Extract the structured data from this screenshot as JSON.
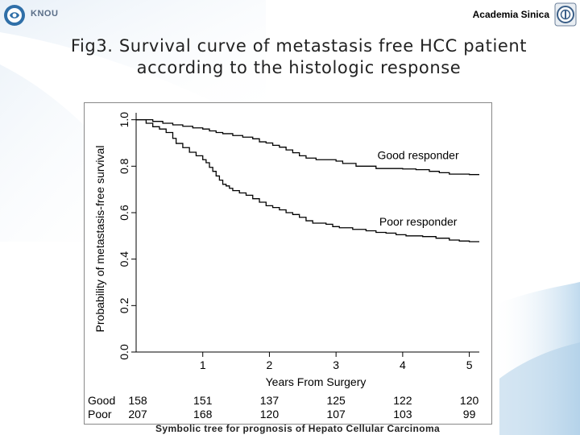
{
  "header": {
    "logo_text": "KNOU",
    "organization": "Academia Sinica",
    "left_logo_icon": "knou-emblem-icon",
    "right_logo_icon": "academia-sinica-emblem-icon"
  },
  "slide": {
    "title_line1": "Fig3. Survival curve of metastasis free HCC patient",
    "title_line2": "according to the histologic response",
    "caption": "Symbolic tree for prognosis of Hepato Cellular Carcinoma"
  },
  "colors": {
    "line": "#000000",
    "swoosh": "#c4dcef",
    "title_text": "#222222"
  },
  "chart_data": {
    "type": "line",
    "step": true,
    "xlabel": "Years From Surgery",
    "ylabel": "Probability of metastasis-free survival",
    "xlim": [
      0,
      5.15
    ],
    "ylim": [
      0,
      1.03
    ],
    "xticks": [
      "1",
      "2",
      "3",
      "4",
      "5"
    ],
    "yticks": [
      "0.0",
      "0.2",
      "0.4",
      "0.6",
      "0.8",
      "1.0"
    ],
    "grid": false,
    "series": [
      {
        "name": "Good responder",
        "points": [
          [
            0,
            1.0
          ],
          [
            0.25,
            0.993
          ],
          [
            0.4,
            0.985
          ],
          [
            0.55,
            0.978
          ],
          [
            0.7,
            0.972
          ],
          [
            0.85,
            0.965
          ],
          [
            1.0,
            0.96
          ],
          [
            1.1,
            0.952
          ],
          [
            1.2,
            0.945
          ],
          [
            1.3,
            0.94
          ],
          [
            1.45,
            0.932
          ],
          [
            1.6,
            0.925
          ],
          [
            1.75,
            0.918
          ],
          [
            1.85,
            0.905
          ],
          [
            1.95,
            0.9
          ],
          [
            2.05,
            0.89
          ],
          [
            2.15,
            0.882
          ],
          [
            2.25,
            0.87
          ],
          [
            2.35,
            0.858
          ],
          [
            2.45,
            0.845
          ],
          [
            2.55,
            0.835
          ],
          [
            2.7,
            0.828
          ],
          [
            3.0,
            0.822
          ],
          [
            3.1,
            0.812
          ],
          [
            3.3,
            0.8
          ],
          [
            3.6,
            0.79
          ],
          [
            4.0,
            0.788
          ],
          [
            4.2,
            0.785
          ],
          [
            4.4,
            0.778
          ],
          [
            4.55,
            0.772
          ],
          [
            4.7,
            0.766
          ],
          [
            5.0,
            0.764
          ],
          [
            5.15,
            0.764
          ]
        ]
      },
      {
        "name": "Poor responder",
        "points": [
          [
            0,
            1.0
          ],
          [
            0.15,
            0.985
          ],
          [
            0.25,
            0.97
          ],
          [
            0.35,
            0.96
          ],
          [
            0.45,
            0.945
          ],
          [
            0.55,
            0.92
          ],
          [
            0.6,
            0.898
          ],
          [
            0.7,
            0.88
          ],
          [
            0.8,
            0.86
          ],
          [
            0.9,
            0.845
          ],
          [
            1.0,
            0.828
          ],
          [
            1.05,
            0.815
          ],
          [
            1.1,
            0.795
          ],
          [
            1.15,
            0.778
          ],
          [
            1.2,
            0.758
          ],
          [
            1.25,
            0.74
          ],
          [
            1.3,
            0.722
          ],
          [
            1.35,
            0.715
          ],
          [
            1.4,
            0.705
          ],
          [
            1.45,
            0.695
          ],
          [
            1.55,
            0.685
          ],
          [
            1.65,
            0.675
          ],
          [
            1.75,
            0.66
          ],
          [
            1.85,
            0.645
          ],
          [
            1.95,
            0.63
          ],
          [
            2.05,
            0.622
          ],
          [
            2.15,
            0.612
          ],
          [
            2.25,
            0.6
          ],
          [
            2.35,
            0.592
          ],
          [
            2.45,
            0.58
          ],
          [
            2.55,
            0.565
          ],
          [
            2.65,
            0.555
          ],
          [
            2.85,
            0.55
          ],
          [
            2.95,
            0.54
          ],
          [
            3.05,
            0.535
          ],
          [
            3.25,
            0.528
          ],
          [
            3.45,
            0.522
          ],
          [
            3.6,
            0.515
          ],
          [
            3.75,
            0.512
          ],
          [
            3.9,
            0.505
          ],
          [
            4.05,
            0.5
          ],
          [
            4.3,
            0.497
          ],
          [
            4.5,
            0.49
          ],
          [
            4.7,
            0.482
          ],
          [
            4.85,
            0.478
          ],
          [
            5.0,
            0.475
          ],
          [
            5.15,
            0.475
          ]
        ]
      }
    ],
    "annotations": [
      "Good responder",
      "Poor responder"
    ],
    "risk_table": {
      "row_labels": [
        "Good",
        "Poor"
      ],
      "x": [
        0,
        1,
        2,
        3,
        4,
        5
      ],
      "rows": [
        [
          "158",
          "151",
          "137",
          "125",
          "122",
          "120"
        ],
        [
          "207",
          "168",
          "120",
          "107",
          "103",
          "99"
        ]
      ]
    }
  }
}
